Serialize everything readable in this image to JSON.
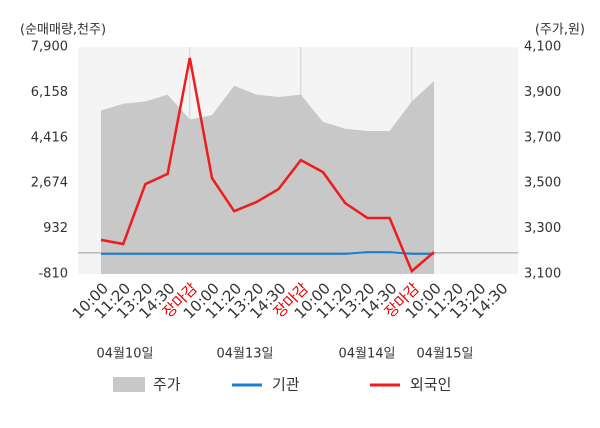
{
  "chart_data": {
    "type": "line",
    "y_label": "(순매매량,천주)",
    "y2_label": "(주가,원)",
    "categories": [
      "10:00",
      "11:20",
      "13:20",
      "14:30",
      "장마감",
      "10:00",
      "11:20",
      "13:20",
      "14:30",
      "장마감",
      "10:00",
      "11:20",
      "13:20",
      "14:30",
      "장마감",
      "10:00",
      "11:20",
      "13:20",
      "14:30"
    ],
    "dates": [
      "04월10일",
      "04월13일",
      "04월14일",
      "04월15일"
    ],
    "series": [
      {
        "name": "주가",
        "kind": "area",
        "axis": "y2",
        "color": "#c8c8c8",
        "values": [
          3820,
          3850,
          3860,
          3890,
          3780,
          3800,
          3930,
          3890,
          3880,
          3890,
          3770,
          3740,
          3730,
          3730,
          3860,
          3950,
          null,
          null,
          null
        ]
      },
      {
        "name": "기관",
        "kind": "line",
        "color": "#1a7fd0",
        "values": [
          -40,
          -40,
          -40,
          -40,
          -40,
          -40,
          -40,
          -40,
          -40,
          -40,
          -40,
          -40,
          30,
          30,
          -40,
          -40,
          null,
          null,
          null
        ]
      },
      {
        "name": "외국인",
        "kind": "line",
        "color": "#ee1c1c",
        "values": [
          500,
          340,
          2640,
          3030,
          7480,
          2870,
          1600,
          1950,
          2450,
          3560,
          3100,
          1910,
          1340,
          1340,
          -700,
          30,
          null,
          null,
          null
        ]
      }
    ],
    "ylim": [
      -810,
      7900
    ],
    "yticks": [
      -810,
      932,
      {
        "value": 2674,
        "label": "2,674"
      },
      {
        "value": 4416,
        "label": "4,416"
      },
      {
        "value": 6158,
        "label": "6,158"
      },
      {
        "value": 7900,
        "label": "7,900"
      }
    ],
    "y2lim": [
      3100,
      4100
    ],
    "y2ticks": [
      {
        "value": 3100,
        "label": "3,100"
      },
      {
        "value": 3300,
        "label": "3,300"
      },
      {
        "value": 3500,
        "label": "3,500"
      },
      {
        "value": 3700,
        "label": "3,700"
      },
      {
        "value": 3900,
        "label": "3,900"
      },
      {
        "value": 4100,
        "label": "4,100"
      }
    ],
    "legend": "bottom"
  }
}
